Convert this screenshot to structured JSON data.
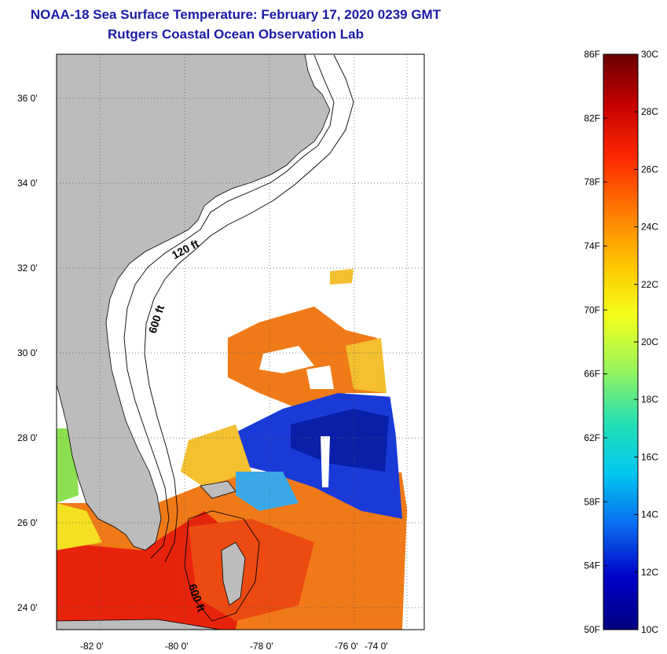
{
  "title": {
    "line1": "NOAA-18 Sea Surface Temperature:  February 17, 2020 0239 GMT",
    "line2": "Rutgers Coastal Ocean Observation Lab"
  },
  "map": {
    "lat_ticks": [
      "36 0'",
      "34 0'",
      "32 0'",
      "30 0'",
      "28 0'",
      "26 0'",
      "24 0'"
    ],
    "lon_ticks": [
      "-82 0'",
      "-80 0'",
      "-78 0'",
      "-76 0'",
      "-74 0'"
    ],
    "contour_labels": [
      "120 ft",
      "600 ft",
      "600 ft"
    ],
    "colors": {
      "land": "#bcbcbc",
      "no_data": "#ffffff",
      "warm": "#e8230c",
      "orange": "#f07a18",
      "cool": "#1a3ad8"
    }
  },
  "colorbar": {
    "fahrenheit_labels": [
      "86F",
      "82F",
      "78F",
      "74F",
      "70F",
      "66F",
      "62F",
      "58F",
      "54F",
      "50F"
    ],
    "celsius_labels": [
      "30C",
      "28C",
      "26C",
      "24C",
      "22C",
      "20C",
      "18C",
      "16C",
      "14C",
      "12C",
      "10C"
    ],
    "gradient_colors": [
      "#6a0000",
      "#c80000",
      "#ff2a00",
      "#ff7a00",
      "#ffc400",
      "#f4ff1a",
      "#9cf55a",
      "#28e0b0",
      "#00c8f0",
      "#0a6cf0",
      "#0000c8",
      "#000080"
    ]
  }
}
